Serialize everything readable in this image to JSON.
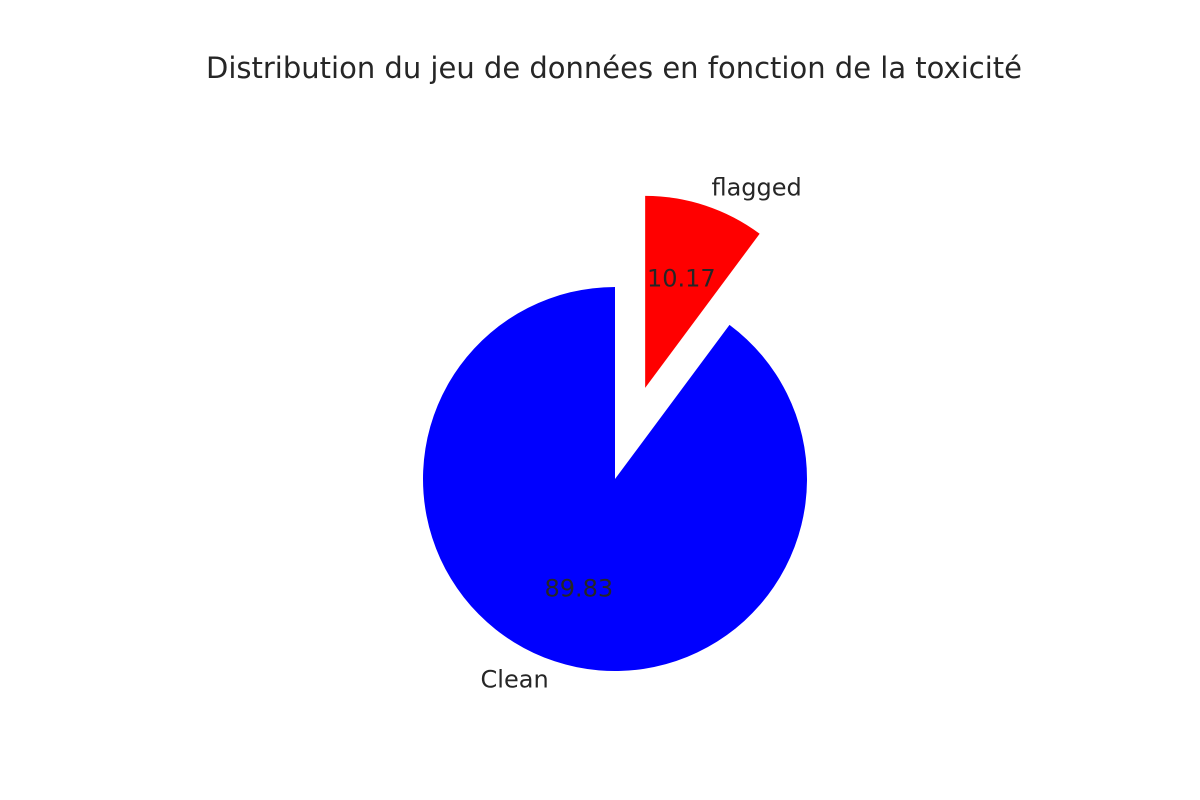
{
  "chart_data": {
    "type": "pie",
    "title": "Distribution du jeu de données en fonction de la toxicité",
    "slices": [
      {
        "label": "flagged",
        "value": 10.17,
        "pct_label": "10.17",
        "color": "#ff0000",
        "exploded": true
      },
      {
        "label": "Clean",
        "value": 89.83,
        "pct_label": "89.83",
        "color": "#0000ff",
        "exploded": false
      }
    ],
    "start_angle_deg": 90,
    "direction": "clockwise"
  }
}
